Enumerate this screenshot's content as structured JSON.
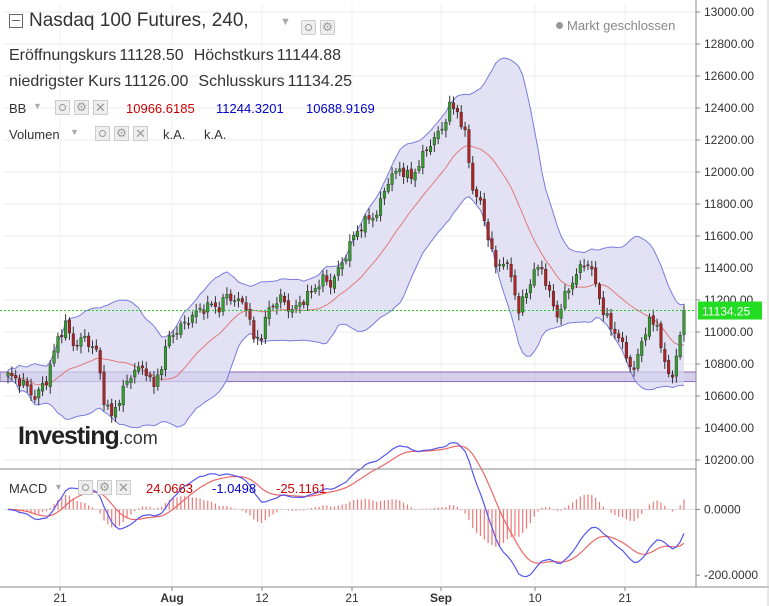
{
  "header": {
    "title": "Nasdaq 100 Futures, 240,",
    "market_status": "Markt geschlossen",
    "open_label": "Eröffnungskurs",
    "open_value": "11128.50",
    "high_label": "Höchstkurs",
    "high_value": "11144.88",
    "low_label": "niedrigster Kurs",
    "low_value": "11126.00",
    "close_label": "Schlusskurs",
    "close_value": "11134.25"
  },
  "indicators": {
    "bb": {
      "label": "BB",
      "mid": "10966.6185",
      "upper": "11244.3201",
      "lower": "10688.9169"
    },
    "volume": {
      "label": "Volumen",
      "v1": "k.A.",
      "v2": "k.A."
    },
    "macd": {
      "label": "MACD",
      "hist": "24.0663",
      "macd": "-1.0498",
      "signal": "-25.1161"
    }
  },
  "watermark": {
    "brand": "Investing",
    "suffix": ".com"
  },
  "colors": {
    "up": "#33a02c",
    "down": "#b22222",
    "band_fill": "#d6d6f0",
    "band_line": "#7b7be0",
    "ma_line": "#e07b7b",
    "price_line": "#22cc22",
    "zone": "#b5a8d8",
    "macd_line": "#5555ee",
    "signal_line": "#ee6666"
  },
  "chart_data": [
    {
      "type": "candlestick",
      "title": "Nasdaq 100 Futures, 240,",
      "ylim": [
        10150,
        13050
      ],
      "y_ticks": [
        "13000.00",
        "12800.00",
        "12600.00",
        "12400.00",
        "12200.00",
        "12000.00",
        "11800.00",
        "11600.00",
        "11400.00",
        "11200.00",
        "11000.00",
        "10800.00",
        "10600.00",
        "10400.00",
        "10200.00"
      ],
      "x_ticks": [
        "21",
        "Aug",
        "12",
        "21",
        "Sep",
        "10",
        "21"
      ],
      "last_price": "11134.25",
      "support_zone": [
        10690,
        10750
      ],
      "close_anchors": [
        [
          0,
          10730
        ],
        [
          4,
          10680
        ],
        [
          7,
          10590
        ],
        [
          10,
          10700
        ],
        [
          13,
          10960
        ],
        [
          15,
          11050
        ],
        [
          17,
          10920
        ],
        [
          20,
          10960
        ],
        [
          23,
          10880
        ],
        [
          25,
          10580
        ],
        [
          27,
          10470
        ],
        [
          30,
          10640
        ],
        [
          33,
          10770
        ],
        [
          36,
          10760
        ],
        [
          38,
          10650
        ],
        [
          40,
          10800
        ],
        [
          42,
          10970
        ],
        [
          45,
          11030
        ],
        [
          48,
          11100
        ],
        [
          50,
          11140
        ],
        [
          53,
          11170
        ],
        [
          55,
          11150
        ],
        [
          57,
          11230
        ],
        [
          59,
          11200
        ],
        [
          62,
          11170
        ],
        [
          64,
          10950
        ],
        [
          66,
          10980
        ],
        [
          68,
          11150
        ],
        [
          71,
          11210
        ],
        [
          74,
          11130
        ],
        [
          76,
          11180
        ],
        [
          79,
          11250
        ],
        [
          82,
          11330
        ],
        [
          84,
          11300
        ],
        [
          87,
          11430
        ],
        [
          90,
          11600
        ],
        [
          93,
          11690
        ],
        [
          96,
          11740
        ],
        [
          99,
          11950
        ],
        [
          102,
          12020
        ],
        [
          105,
          11960
        ],
        [
          108,
          12100
        ],
        [
          110,
          12180
        ],
        [
          113,
          12270
        ],
        [
          115,
          12410
        ],
        [
          117,
          12380
        ],
        [
          119,
          12230
        ],
        [
          121,
          11900
        ],
        [
          123,
          11800
        ],
        [
          125,
          11600
        ],
        [
          127,
          11400
        ],
        [
          129,
          11450
        ],
        [
          131,
          11350
        ],
        [
          133,
          11130
        ],
        [
          135,
          11250
        ],
        [
          137,
          11380
        ],
        [
          139,
          11400
        ],
        [
          141,
          11230
        ],
        [
          143,
          11100
        ],
        [
          145,
          11220
        ],
        [
          147,
          11320
        ],
        [
          149,
          11400
        ],
        [
          151,
          11440
        ],
        [
          153,
          11300
        ],
        [
          155,
          11130
        ],
        [
          157,
          11030
        ],
        [
          159,
          10970
        ],
        [
          161,
          10850
        ],
        [
          163,
          10750
        ],
        [
          165,
          10950
        ],
        [
          167,
          11060
        ],
        [
          169,
          11050
        ],
        [
          171,
          10780
        ],
        [
          173,
          10730
        ],
        [
          175,
          10960
        ],
        [
          176,
          11134
        ]
      ]
    },
    {
      "type": "line",
      "title": "MACD",
      "ylim": [
        -230,
        120
      ],
      "y_ticks": [
        "0.0000",
        "-200.0000"
      ]
    }
  ]
}
